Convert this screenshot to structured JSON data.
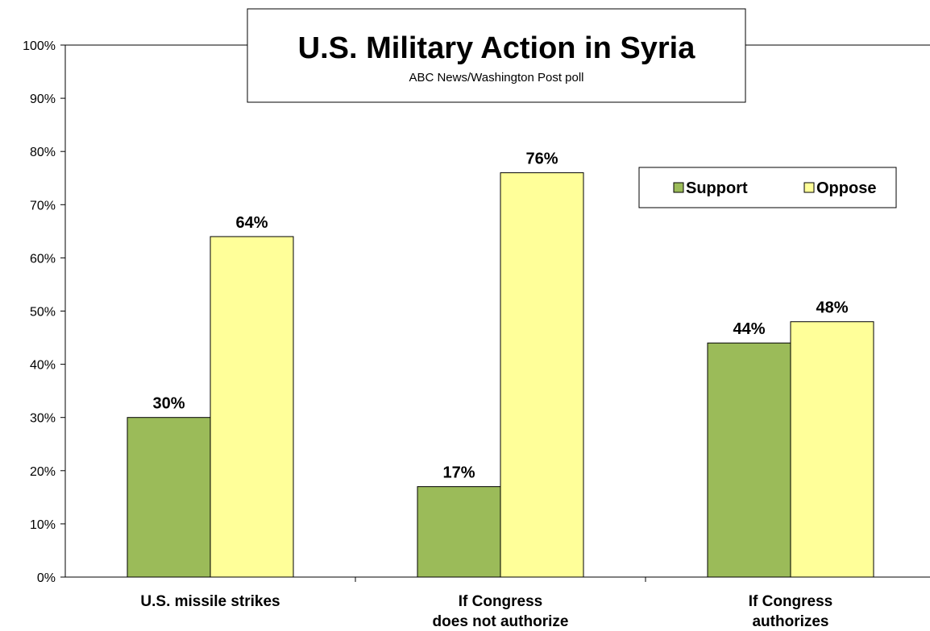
{
  "chart_data": {
    "type": "bar",
    "title": "U.S. Military Action in Syria",
    "subtitle": "ABC News/Washington Post poll",
    "categories": [
      [
        "U.S. missile strikes"
      ],
      [
        "If Congress",
        "does not authorize"
      ],
      [
        "If Congress",
        "authorizes"
      ]
    ],
    "series": [
      {
        "name": "Support",
        "values": [
          30,
          17,
          44
        ],
        "color": "#9bbb59"
      },
      {
        "name": "Oppose",
        "values": [
          64,
          76,
          48
        ],
        "color": "#ffff99"
      }
    ],
    "data_labels": [
      [
        "30%",
        "17%",
        "44%"
      ],
      [
        "64%",
        "76%",
        "48%"
      ]
    ],
    "ylim": [
      0,
      100
    ],
    "yticks": [
      "0%",
      "10%",
      "20%",
      "30%",
      "40%",
      "50%",
      "60%",
      "70%",
      "80%",
      "90%",
      "100%"
    ],
    "xlabel": "",
    "ylabel": "",
    "grid": false,
    "legend_position": "top-right"
  }
}
